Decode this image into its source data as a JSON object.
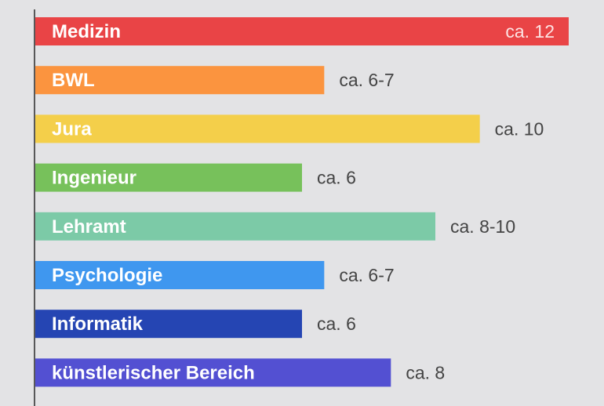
{
  "chart_data": {
    "type": "bar",
    "orientation": "horizontal",
    "categories": [
      "Medizin",
      "BWL",
      "Jura",
      "Ingenieur",
      "Lehramt",
      "Psychologie",
      "Informatik",
      "künstlerischer Bereich"
    ],
    "values": [
      12,
      6.5,
      10,
      6,
      9,
      6.5,
      6,
      8
    ],
    "value_labels": [
      "ca. 12",
      "ca. 6-7",
      "ca. 10",
      "ca. 6",
      "ca. 8-10",
      "ca. 6-7",
      "ca. 6",
      "ca. 8"
    ],
    "colors": [
      "#e94446",
      "#fb943f",
      "#f4cf4a",
      "#77c15b",
      "#7ccaa7",
      "#3f97ef",
      "#2545b3",
      "#5350d2"
    ],
    "xlim": [
      0,
      12
    ],
    "grid": false,
    "title": "",
    "xlabel": "",
    "ylabel": ""
  }
}
